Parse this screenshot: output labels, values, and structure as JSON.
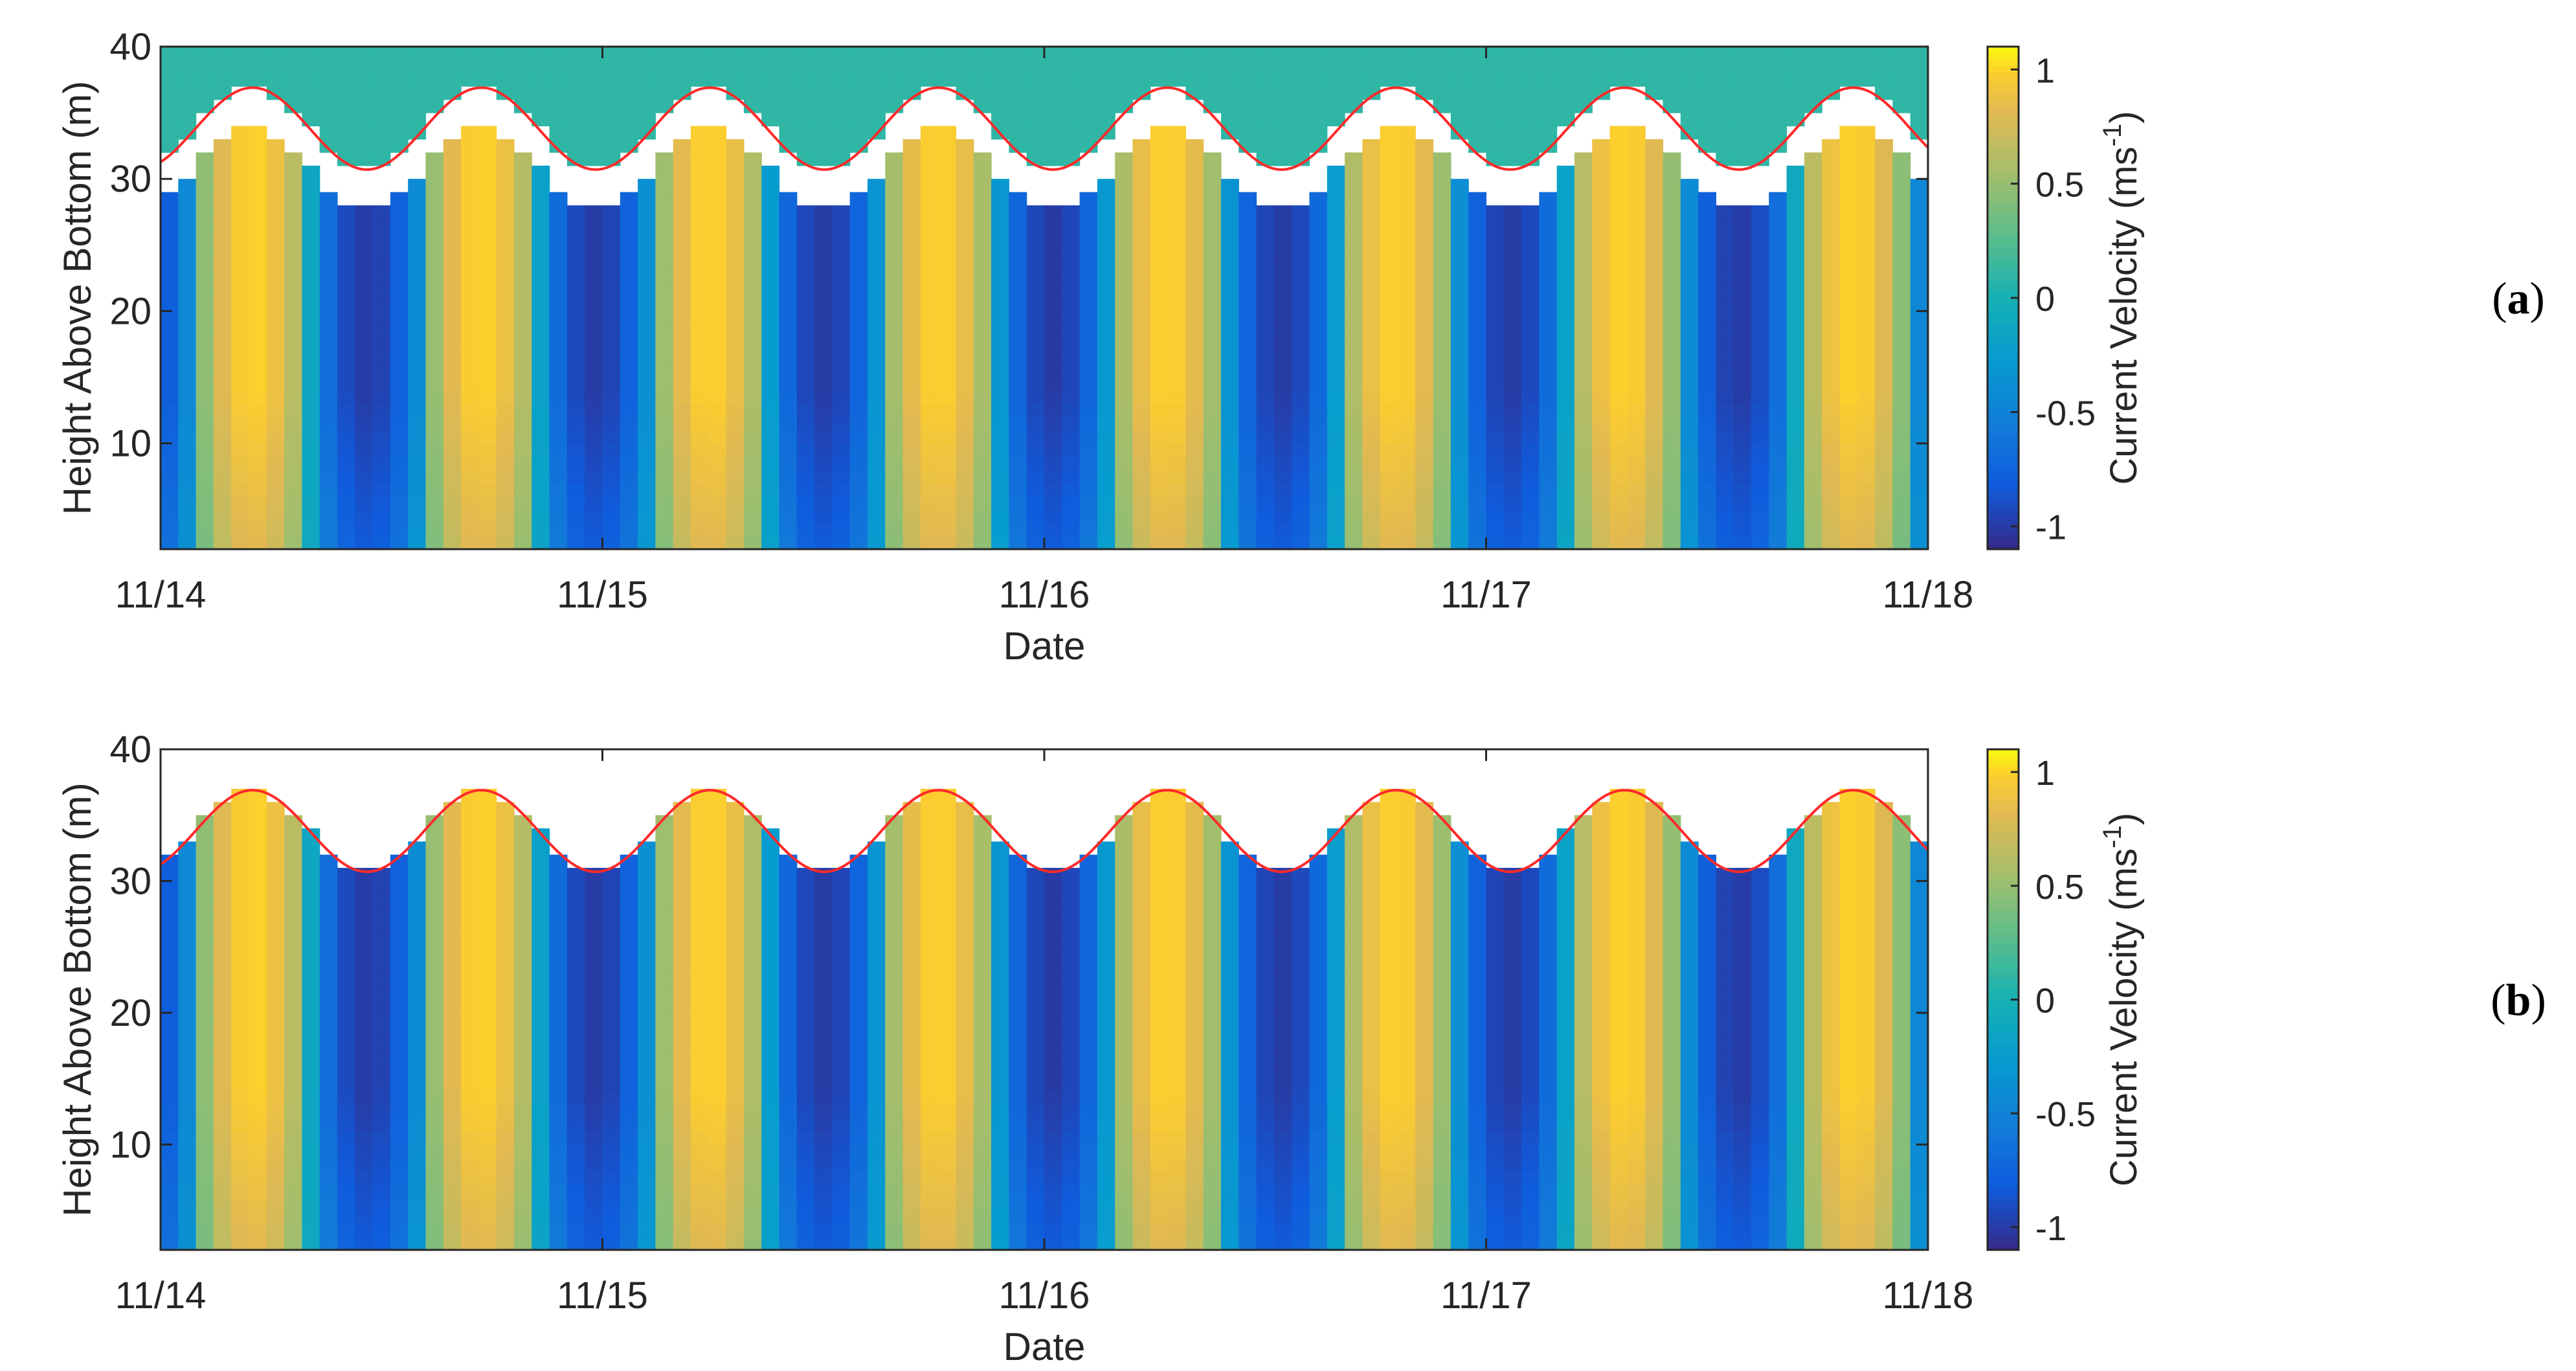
{
  "chart_data": [
    {
      "panel_label": "a",
      "type": "heatmap",
      "xlabel": "Date",
      "ylabel": "Height Above Bottom (m)",
      "xticks": [
        "11/14",
        "11/15",
        "11/16",
        "11/17",
        "11/18"
      ],
      "yticks": [
        10,
        20,
        30,
        40
      ],
      "xlim": [
        "11/14 00:00",
        "11/18 00:00"
      ],
      "ylim": [
        2,
        40
      ],
      "colorbar": {
        "label": "Current Velocity (ms-1)",
        "label_main": "Current Velocity (ms",
        "label_sup": "-1",
        "label_close": ")",
        "ticks": [
          -1,
          -0.5,
          0,
          0.5,
          1
        ],
        "tick_labels": [
          "-1",
          "-0.5",
          "0",
          "0.5",
          "1"
        ],
        "range": [
          -1.1,
          1.1
        ]
      },
      "tidal_period_hours": 12.42,
      "surface_elevation_line": {
        "color": "#ff2a2a",
        "mean_m": 33.8,
        "amplitude_m": 3.1,
        "first_peak_date": "11/14 05:00"
      },
      "blanking_gap_m": 3.0,
      "above_surface_fill_value": 0.1,
      "flood_velocity_max": 1.0,
      "ebb_velocity_min": -1.0
    },
    {
      "panel_label": "b",
      "type": "heatmap",
      "xlabel": "Date",
      "ylabel": "Height Above Bottom (m)",
      "xticks": [
        "11/14",
        "11/15",
        "11/16",
        "11/17",
        "11/18"
      ],
      "yticks": [
        10,
        20,
        30,
        40
      ],
      "xlim": [
        "11/14 00:00",
        "11/18 00:00"
      ],
      "ylim": [
        2,
        40
      ],
      "colorbar": {
        "label": "Current Velocity (ms-1)",
        "label_main": "Current Velocity (ms",
        "label_sup": "-1",
        "label_close": ")",
        "ticks": [
          -1,
          -0.5,
          0,
          0.5,
          1
        ],
        "tick_labels": [
          "-1",
          "-0.5",
          "0",
          "0.5",
          "1"
        ],
        "range": [
          -1.1,
          1.1
        ]
      },
      "tidal_period_hours": 12.42,
      "surface_elevation_line": {
        "color": "#ff2a2a",
        "mean_m": 33.8,
        "amplitude_m": 3.1,
        "first_peak_date": "11/14 05:00"
      },
      "blanking_gap_m": 0,
      "above_surface_fill_value": null,
      "flood_velocity_max": 1.0,
      "ebb_velocity_min": -1.0
    }
  ]
}
